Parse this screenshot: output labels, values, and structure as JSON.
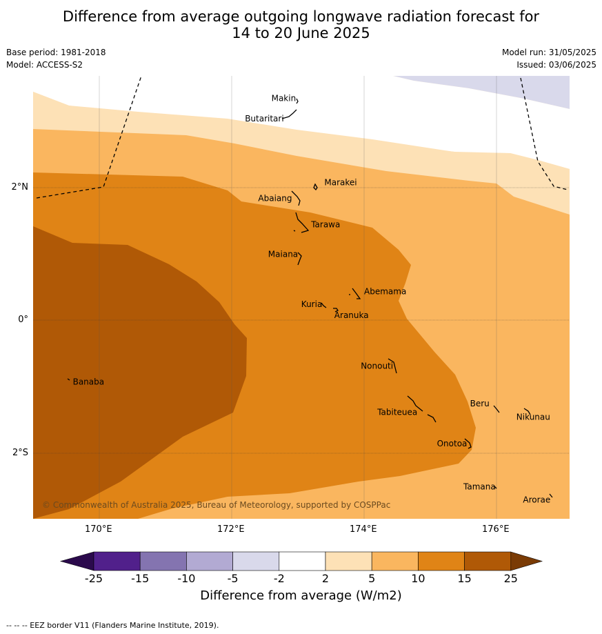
{
  "title_line1": "Difference from average outgoing longwave radiation forecast for",
  "title_line2": "14 to 20 June 2025",
  "base_period": "Base period: 1981-2018",
  "model": "Model: ACCESS-S2",
  "model_run": "Model run: 31/05/2025",
  "issued": "Issued: 03/06/2025",
  "lon_labels": [
    "170°E",
    "172°E",
    "174°E",
    "176°E"
  ],
  "lat_labels": [
    "2°N",
    "0°",
    "2°S"
  ],
  "places": [
    {
      "name": "Makin",
      "label_lon": 172.6,
      "label_lat": 3.3
    },
    {
      "name": "Butaritari",
      "label_lon": 172.2,
      "label_lat": 2.99
    },
    {
      "name": "Marakei",
      "label_lon": 173.4,
      "label_lat": 2.03
    },
    {
      "name": "Abaiang",
      "label_lon": 172.4,
      "label_lat": 1.79
    },
    {
      "name": "Tarawa",
      "label_lon": 173.2,
      "label_lat": 1.4
    },
    {
      "name": "Maiana",
      "label_lon": 172.55,
      "label_lat": 0.95
    },
    {
      "name": "Abemama",
      "label_lon": 174.0,
      "label_lat": 0.39
    },
    {
      "name": "Kuria",
      "label_lon": 173.05,
      "label_lat": 0.2
    },
    {
      "name": "Aranuka",
      "label_lon": 173.55,
      "label_lat": 0.03
    },
    {
      "name": "Nonouti",
      "label_lon": 173.95,
      "label_lat": -0.73
    },
    {
      "name": "Banaba",
      "label_lon": 169.6,
      "label_lat": -0.97
    },
    {
      "name": "Beru",
      "label_lon": 175.6,
      "label_lat": -1.3
    },
    {
      "name": "Tabiteuea",
      "label_lon": 174.2,
      "label_lat": -1.43
    },
    {
      "name": "Nikunau",
      "label_lon": 176.3,
      "label_lat": -1.5
    },
    {
      "name": "Onotoa",
      "label_lon": 175.1,
      "label_lat": -1.9
    },
    {
      "name": "Tamana",
      "label_lon": 175.5,
      "label_lat": -2.55
    },
    {
      "name": "Arorae",
      "label_lon": 176.4,
      "label_lat": -2.75
    }
  ],
  "copyright": "© Commonwealth of Australia 2025, Bureau of Meteorology, supported by COSPPac",
  "colorbar": {
    "ticks": [
      "-25",
      "-15",
      "-10",
      "-5",
      "-2",
      "2",
      "5",
      "10",
      "15",
      "25"
    ],
    "colors": [
      "#51208b",
      "#8474b0",
      "#b2aad3",
      "#d9d9eb",
      "#ffffff",
      "#fde1b6",
      "#fab65f",
      "#e08416",
      "#b05906"
    ],
    "under_color": "#2b0a4c",
    "over_color": "#7a3b05",
    "title": "Difference from average (W/m2)"
  },
  "footer": "--  --  -- EEZ border V11 (Flanders Marine Institute, 2019)."
}
